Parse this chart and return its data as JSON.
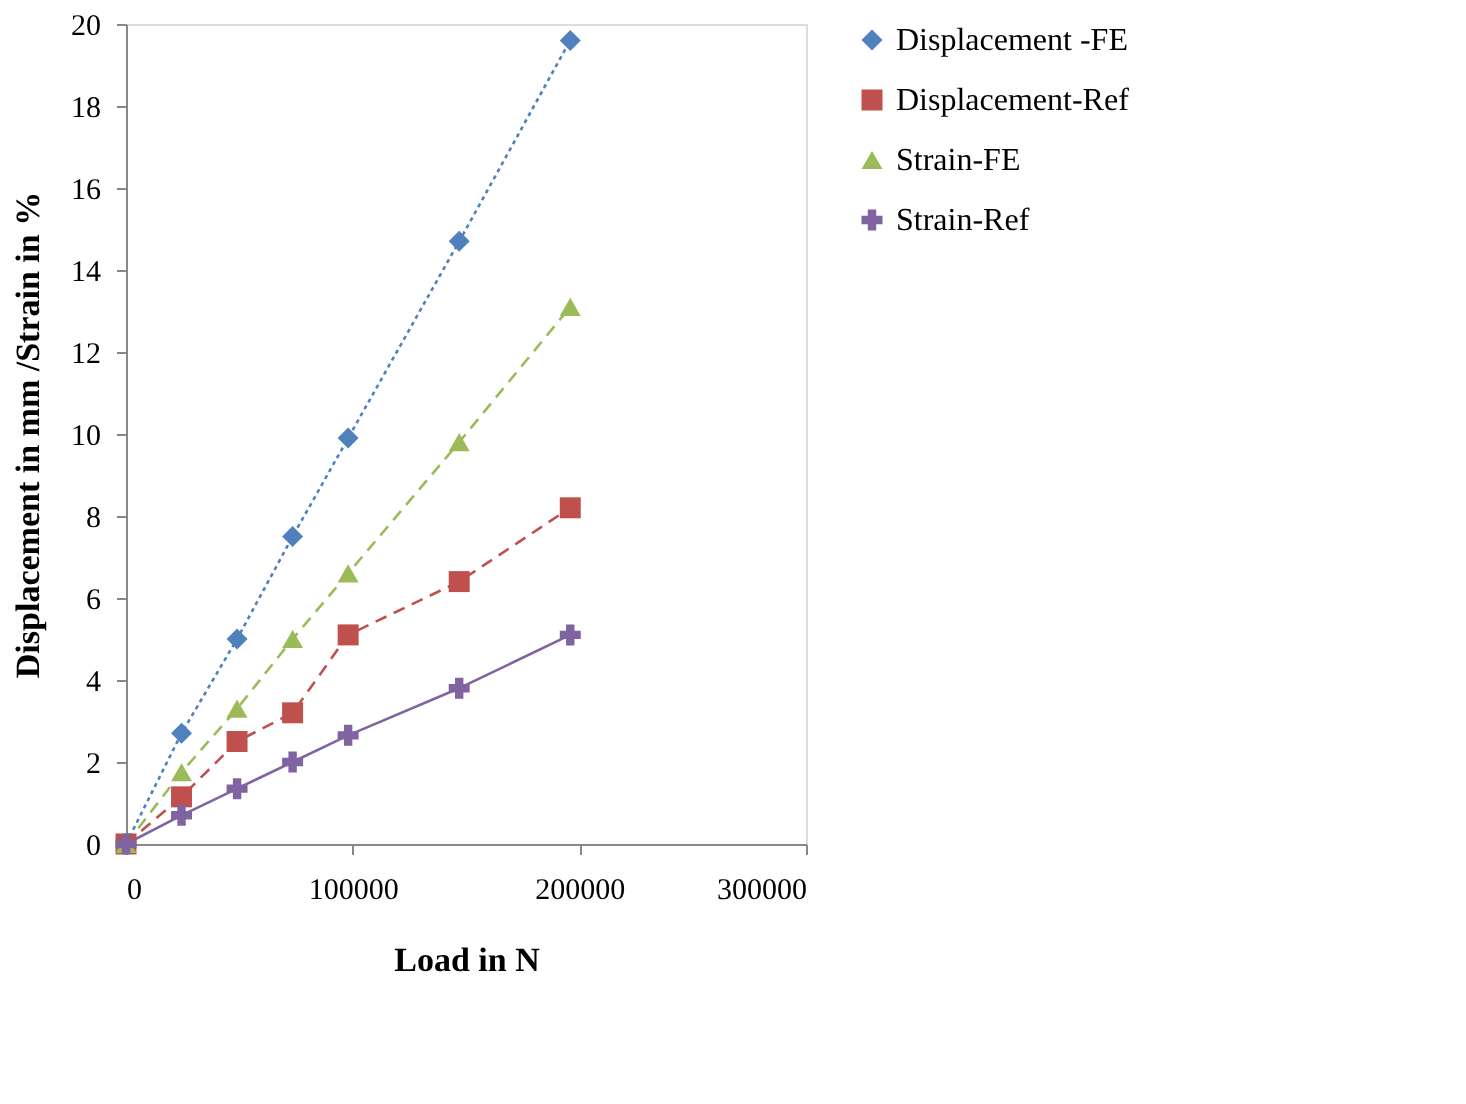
{
  "chart_data": {
    "type": "line",
    "xlabel": "Load in N",
    "ylabel": "Displacement in mm /Strain in %",
    "x": [
      0,
      24500,
      49000,
      73500,
      98000,
      147000,
      196000
    ],
    "series": [
      {
        "name": "Displacement -FE",
        "color": "#4f81bd",
        "marker": "diamond",
        "line_style": "dotted",
        "values": [
          0,
          2.7,
          5.0,
          7.5,
          9.9,
          14.7,
          19.6
        ]
      },
      {
        "name": "Displacement-Ref",
        "color": "#c0504d",
        "marker": "square",
        "line_style": "dashed",
        "values": [
          0,
          1.15,
          2.5,
          3.2,
          5.1,
          6.4,
          8.2
        ]
      },
      {
        "name": "Strain-FE",
        "color": "#9bbb59",
        "marker": "triangle",
        "line_style": "dashed",
        "values": [
          0,
          1.75,
          3.3,
          5.0,
          6.6,
          9.8,
          13.1
        ]
      },
      {
        "name": "Strain-Ref",
        "color": "#8064a2",
        "marker": "cross",
        "line_style": "solid",
        "values": [
          0,
          0.7,
          1.35,
          2.0,
          2.65,
          3.8,
          5.1
        ]
      }
    ],
    "xlim": [
      0,
      300000
    ],
    "xticks": [
      0,
      100000,
      200000,
      300000
    ],
    "ylim": [
      0,
      20
    ],
    "yticks": [
      0,
      2,
      4,
      6,
      8,
      10,
      12,
      14,
      16,
      18,
      20
    ],
    "grid": false,
    "legend": "right"
  }
}
